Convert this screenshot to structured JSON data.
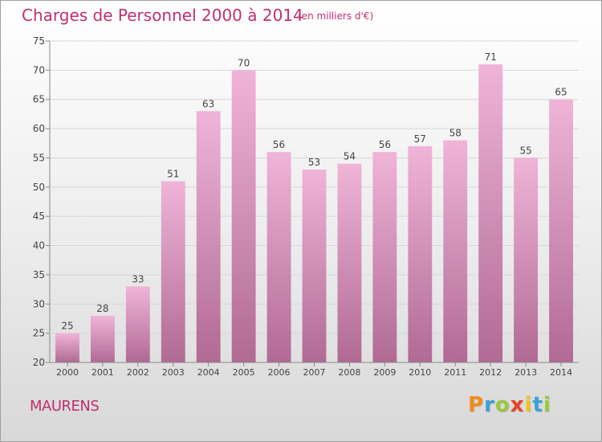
{
  "title": "Charges de Personnel 2000 à 2014",
  "subtitle": "(en milliers d'€)",
  "commune": "MAURENS",
  "logo": {
    "letters": [
      "P",
      "r",
      "o",
      "x",
      "i",
      "t",
      "i"
    ],
    "colors": [
      "#f08c1e",
      "#3aa0d8",
      "#9bc83c",
      "#e8402a",
      "#f2c21c",
      "#3aa0d8",
      "#9bc83c"
    ]
  },
  "colors": {
    "title": "#c0306f",
    "bar_top": "#f0b4d8",
    "bar_bottom": "#b06a94",
    "axis": "#888888",
    "grid": "#d7d7d7"
  },
  "chart_data": {
    "type": "bar",
    "title": "Charges de Personnel 2000 à 2014",
    "subtitle": "(en milliers d'€)",
    "categories": [
      "2000",
      "2001",
      "2002",
      "2003",
      "2004",
      "2005",
      "2006",
      "2007",
      "2008",
      "2009",
      "2010",
      "2011",
      "2012",
      "2013",
      "2014"
    ],
    "values": [
      25,
      28,
      33,
      51,
      63,
      70,
      56,
      53,
      54,
      56,
      57,
      58,
      71,
      55,
      65
    ],
    "ylim": [
      20,
      75
    ],
    "yticks": [
      20,
      25,
      30,
      35,
      40,
      45,
      50,
      55,
      60,
      65,
      70,
      75
    ],
    "grid": true,
    "data_labels": true
  }
}
